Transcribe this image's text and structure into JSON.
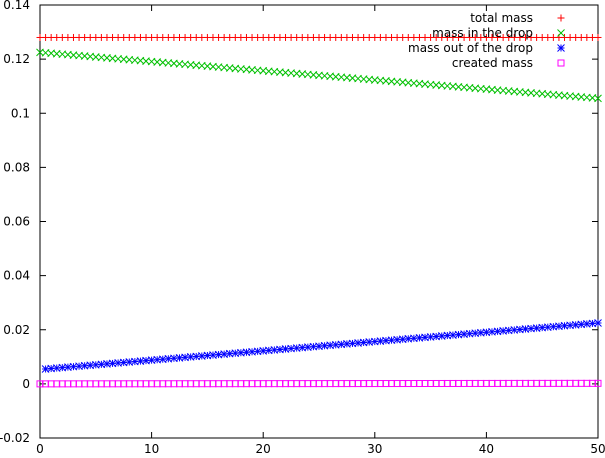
{
  "chart_data": {
    "type": "scatter",
    "xlim": [
      0,
      50
    ],
    "ylim": [
      -0.02,
      0.14
    ],
    "x_ticks": [
      "0",
      "10",
      "20",
      "30",
      "40",
      "50"
    ],
    "y_ticks": [
      "-0.02",
      "0",
      "0.02",
      "0.04",
      "0.06",
      "0.08",
      "0.1",
      "0.12",
      "0.14"
    ],
    "grid": false,
    "legend_position": "top-right",
    "series": [
      {
        "name": "total mass",
        "marker": "plus",
        "color": "#ff0000",
        "x_start": 0,
        "x_end": 50,
        "n": 101,
        "y_start": 0.128,
        "y_end": 0.128
      },
      {
        "name": "mass in the drop",
        "marker": "cross",
        "color": "#00c000",
        "x_start": 0,
        "x_end": 50,
        "n": 101,
        "y_start": 0.1225,
        "y_end": 0.1055
      },
      {
        "name": "mass out of the drop",
        "marker": "star",
        "color": "#0000ff",
        "x_start": 0.5,
        "x_end": 50,
        "n": 100,
        "y_start": 0.0055,
        "y_end": 0.0225
      },
      {
        "name": "created mass",
        "marker": "square",
        "color": "#ff00ff",
        "x_start": 0,
        "x_end": 50,
        "n": 101,
        "y_start": 0.0,
        "y_end": 0.0002
      }
    ]
  }
}
